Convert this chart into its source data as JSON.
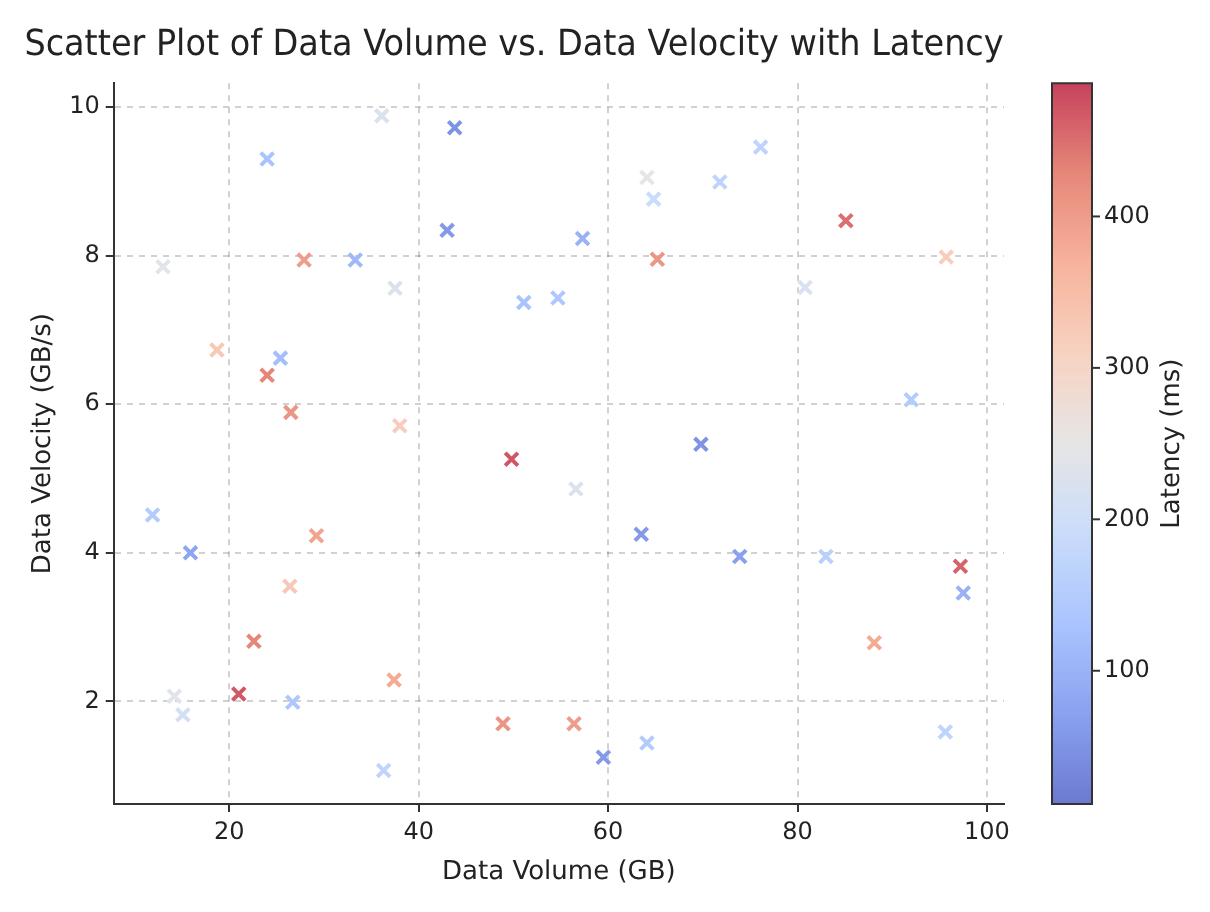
{
  "chart_data": {
    "type": "scatter",
    "title": "Scatter Plot of Data Volume vs. Data Velocity with Latency",
    "xlabel": "Data Volume (GB)",
    "ylabel": "Data Velocity (GB/s)",
    "clabel": "Latency (ms)",
    "xlim": [
      7.8,
      101.8
    ],
    "xticks": [
      20,
      40,
      60,
      80,
      100
    ],
    "ylim": [
      0.62,
      10.32
    ],
    "yticks": [
      2,
      4,
      6,
      8,
      10
    ],
    "clim": [
      12,
      488
    ],
    "cticks": [
      100,
      200,
      300,
      400
    ],
    "grid": true,
    "marker": "cross",
    "series": [
      {
        "x": [
          24.0,
          36.1,
          43.8,
          43.0,
          13.0,
          27.9,
          33.3,
          37.5,
          18.7,
          25.4,
          24.0,
          26.5,
          38.0,
          76.1,
          64.1,
          64.8,
          71.8,
          85.1,
          57.3,
          65.2,
          95.7,
          54.7,
          80.8,
          92.0,
          69.8,
          51.1,
          49.8,
          56.6,
          11.9,
          15.9,
          29.2,
          26.4,
          22.6,
          37.4,
          14.2,
          21.0,
          26.7,
          15.1,
          36.3,
          48.9,
          56.4,
          63.5,
          73.9,
          83.0,
          97.2,
          97.5,
          88.1,
          59.5,
          64.1,
          95.6
        ],
        "values": [
          9.3,
          9.88,
          9.72,
          8.34,
          7.85,
          7.94,
          7.94,
          7.56,
          6.73,
          6.62,
          6.39,
          5.89,
          5.71,
          9.46,
          9.05,
          8.76,
          8.99,
          8.47,
          8.23,
          7.95,
          7.98,
          7.43,
          7.57,
          6.06,
          5.46,
          7.37,
          5.26,
          4.86,
          4.51,
          4.0,
          4.23,
          3.55,
          2.81,
          2.29,
          2.07,
          2.1,
          1.99,
          1.82,
          1.07,
          1.7,
          1.7,
          4.25,
          3.95,
          3.95,
          3.82,
          3.46,
          2.79,
          1.25,
          1.44,
          1.59
        ],
        "cvalues": [
          130,
          230,
          50,
          60,
          240,
          400,
          110,
          230,
          330,
          120,
          430,
          410,
          320,
          170,
          250,
          190,
          170,
          450,
          100,
          410,
          320,
          140,
          220,
          150,
          50,
          130,
          470,
          230,
          150,
          80,
          390,
          330,
          430,
          380,
          240,
          470,
          140,
          210,
          170,
          410,
          400,
          60,
          70,
          160,
          460,
          100,
          380,
          60,
          150,
          170
        ]
      }
    ]
  }
}
